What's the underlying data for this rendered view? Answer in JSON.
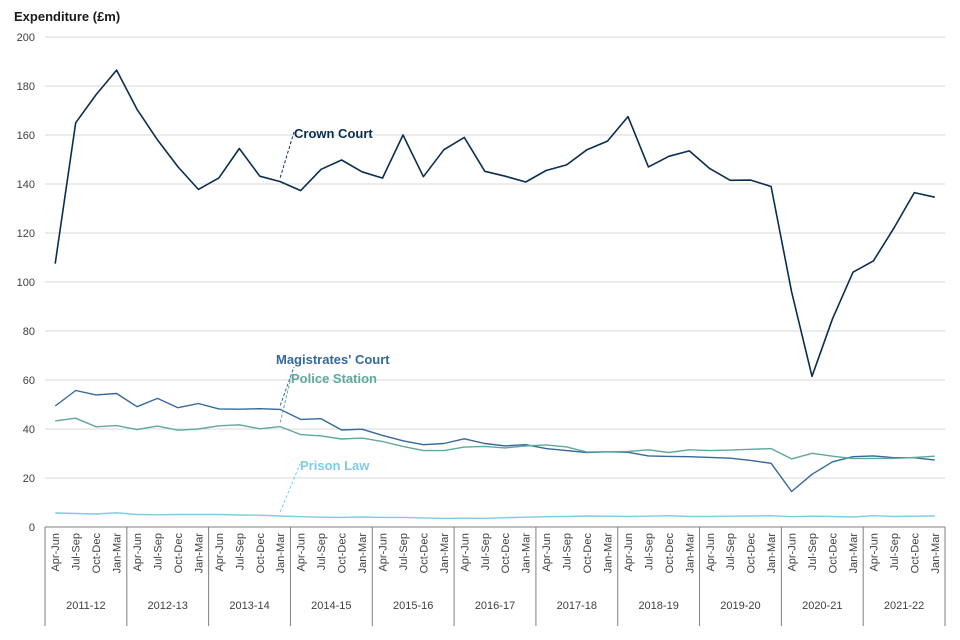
{
  "chart_data": {
    "type": "line",
    "ylabel": "Expenditure (£m)",
    "ylim": [
      0,
      200
    ],
    "yticks": [
      0,
      20,
      40,
      60,
      80,
      100,
      120,
      140,
      160,
      180,
      200
    ],
    "quarters": [
      "Apr-Jun",
      "Jul-Sep",
      "Oct-Dec",
      "Jan-Mar"
    ],
    "years": [
      "2011-12",
      "2012-13",
      "2013-14",
      "2014-15",
      "2015-16",
      "2016-17",
      "2017-18",
      "2018-19",
      "2019-20",
      "2020-21",
      "2021-22"
    ],
    "x": [
      "Apr-Jun",
      "Jul-Sep",
      "Oct-Dec",
      "Jan-Mar",
      "Apr-Jun",
      "Jul-Sep",
      "Oct-Dec",
      "Jan-Mar",
      "Apr-Jun",
      "Jul-Sep",
      "Oct-Dec",
      "Jan-Mar",
      "Apr-Jun",
      "Jul-Sep",
      "Oct-Dec",
      "Jan-Mar",
      "Apr-Jun",
      "Jul-Sep",
      "Oct-Dec",
      "Jan-Mar",
      "Apr-Jun",
      "Jul-Sep",
      "Oct-Dec",
      "Jan-Mar",
      "Apr-Jun",
      "Jul-Sep",
      "Oct-Dec",
      "Jan-Mar",
      "Apr-Jun",
      "Jul-Sep",
      "Oct-Dec",
      "Jan-Mar",
      "Apr-Jun",
      "Jul-Sep",
      "Oct-Dec",
      "Jan-Mar",
      "Apr-Jun",
      "Jul-Sep",
      "Oct-Dec",
      "Jan-Mar",
      "Apr-Jun",
      "Jul-Sep",
      "Oct-Dec",
      "Jan-Mar"
    ],
    "series": [
      {
        "name": "Crown Court",
        "color": "#0b2e4f",
        "values": [
          107.5,
          165,
          176.5,
          186.5,
          170.5,
          158,
          147,
          137.8,
          142.5,
          154.5,
          143.2,
          141,
          137.3,
          146,
          149.8,
          145,
          142.4,
          160,
          143,
          154,
          159,
          145.2,
          143.2,
          140.8,
          145.5,
          147.8,
          154,
          157.5,
          167.5,
          147,
          151.3,
          153.5,
          146.3,
          141.5,
          141.6,
          139,
          96,
          61.5,
          85,
          104,
          108.6,
          122,
          136.5,
          134.6
        ],
        "label_anchor_index": 3
      },
      {
        "name": "Magistrates' Court",
        "color": "#35689c",
        "values": [
          49.4,
          55.7,
          53.9,
          54.5,
          49.1,
          52.5,
          48.7,
          50.4,
          48.2,
          48.1,
          48.3,
          48,
          43.9,
          44.2,
          39.6,
          39.9,
          37.4,
          35.2,
          33.6,
          34.1,
          36,
          34.1,
          33.1,
          33.6,
          32,
          31.2,
          30.4,
          30.7,
          30.5,
          29,
          28.8,
          28.7,
          28.4,
          28.1,
          27.2,
          26,
          14.5,
          21.5,
          26.6,
          28.7,
          29,
          28.3,
          28.3,
          27.3
        ],
        "label_anchor_index": 3
      },
      {
        "name": "Police Station",
        "color": "#5fa89d",
        "values": [
          43.3,
          44.4,
          40.9,
          41.4,
          39.8,
          41.2,
          39.5,
          40,
          41.3,
          41.7,
          40.1,
          41,
          37.7,
          37.2,
          35.9,
          36.3,
          34.9,
          32.9,
          31.2,
          31.2,
          32.6,
          32.9,
          32.3,
          33.1,
          33.5,
          32.7,
          30.6,
          30.7,
          30.8,
          31.5,
          30.4,
          31.5,
          31.2,
          31.4,
          31.7,
          32,
          27.8,
          30.1,
          28.9,
          27.9,
          28,
          28,
          28.4,
          28.9
        ],
        "label_anchor_index": 3
      },
      {
        "name": "Prison Law",
        "color": "#80cbe3",
        "values": [
          5.7,
          5.5,
          5.3,
          5.8,
          5.1,
          5,
          5.1,
          5.1,
          5.1,
          4.9,
          4.8,
          4.5,
          4.2,
          4,
          3.9,
          4.1,
          3.9,
          3.9,
          3.7,
          3.5,
          3.6,
          3.5,
          3.8,
          4,
          4.2,
          4.3,
          4.5,
          4.4,
          4.3,
          4.4,
          4.6,
          4.3,
          4.3,
          4.4,
          4.5,
          4.6,
          4.2,
          4.4,
          4.3,
          4.1,
          4.6,
          4.3,
          4.4,
          4.5
        ],
        "label_anchor_index": 3
      }
    ]
  }
}
